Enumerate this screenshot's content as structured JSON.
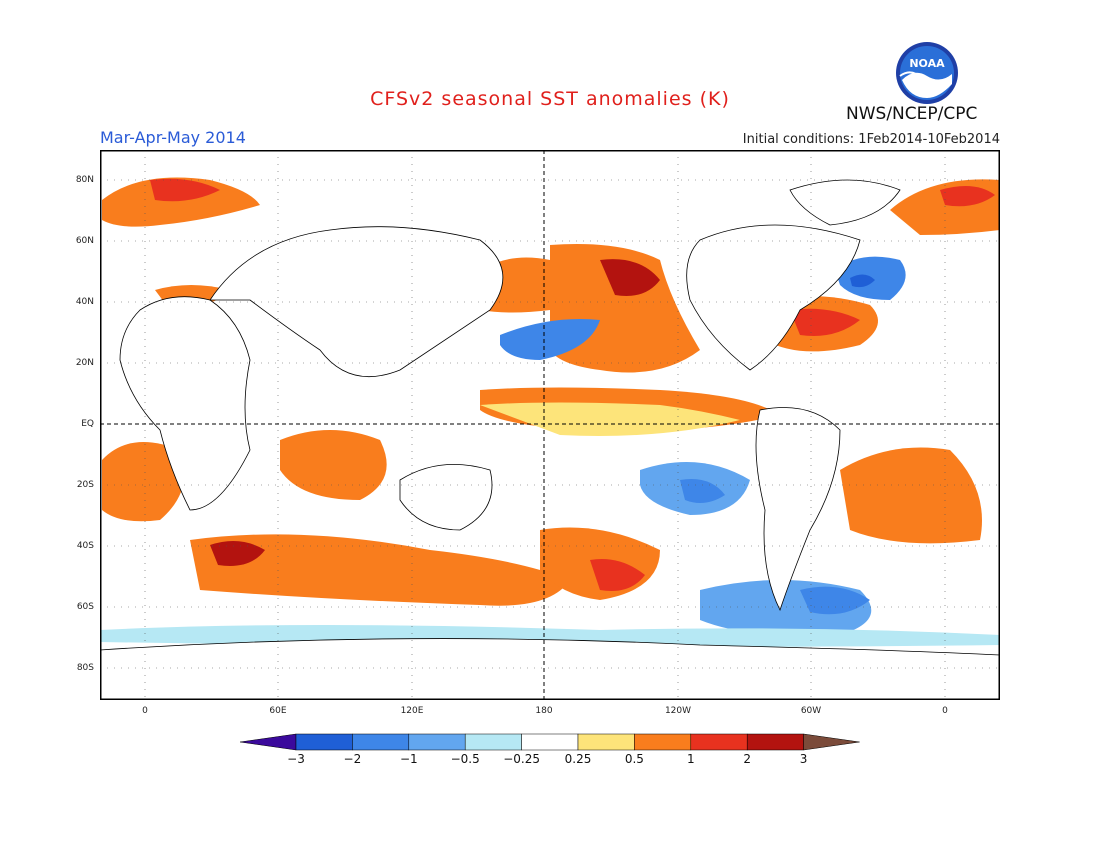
{
  "title": "CFSv2 seasonal SST anomalies (K)",
  "season": "Mar-Apr-May 2014",
  "initial_conditions": "Initial conditions: 1Feb2014-10Feb2014",
  "agency": "NWS/NCEP/CPC",
  "logo_text": "NOAA",
  "colors": {
    "title": "#e0201c",
    "season": "#2a5bd7"
  },
  "map": {
    "lat_labels": [
      "80N",
      "60N",
      "40N",
      "20N",
      "EQ",
      "20S",
      "40S",
      "60S",
      "80S"
    ],
    "lon_labels": [
      "0",
      "60E",
      "120E",
      "180",
      "120W",
      "60W",
      "0"
    ]
  },
  "colorbar": {
    "labels": [
      "-3",
      "-2",
      "-1",
      "-0.5",
      "-0.25",
      "0.25",
      "0.5",
      "1",
      "2",
      "3"
    ],
    "colors": [
      "#3b0a9c",
      "#1f5fd6",
      "#3e86e8",
      "#62a6ef",
      "#b6e8f4",
      "#ffffff",
      "#fde47a",
      "#f97d1d",
      "#e8321f",
      "#b3130f",
      "#7b4b3a"
    ]
  }
}
